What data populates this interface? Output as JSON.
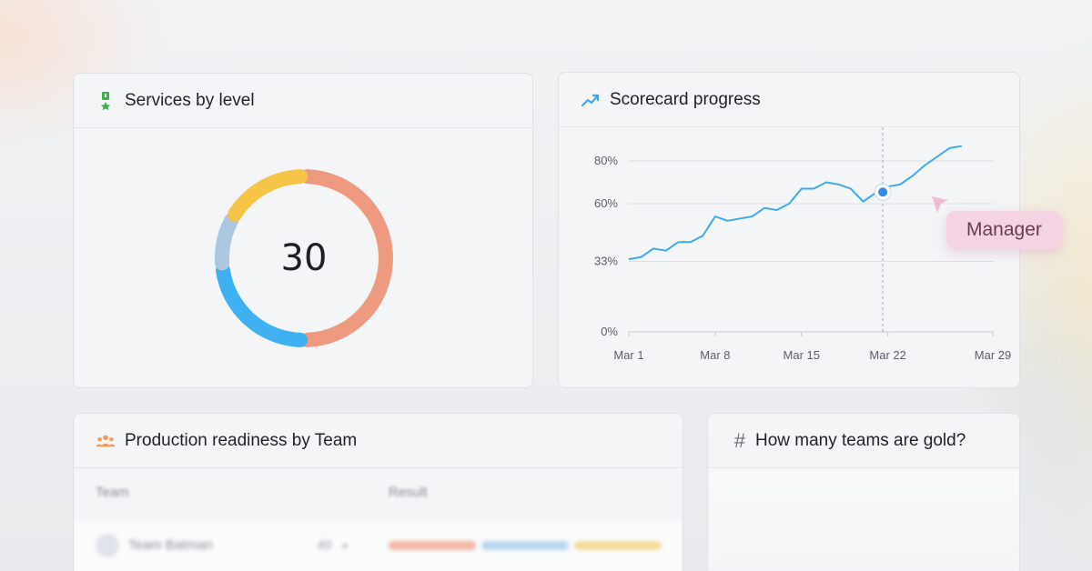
{
  "services_card": {
    "title": "Services by level",
    "icon": "medal-icon",
    "total": "30",
    "chart_data": {
      "type": "pie",
      "values": [
        15,
        7,
        3,
        5
      ],
      "colors": [
        "#ee9a80",
        "#3fb1f2",
        "#acc7df",
        "#f6c547"
      ],
      "hole": true
    }
  },
  "scorecard_card": {
    "title": "Scorecard progress",
    "icon": "trend-line-icon",
    "tooltip_label": "Manager",
    "chart_data": {
      "type": "line",
      "x": [
        "Mar 1",
        "Mar 2",
        "Mar 3",
        "Mar 4",
        "Mar 5",
        "Mar 6",
        "Mar 7",
        "Mar 8",
        "Mar 9",
        "Mar 10",
        "Mar 11",
        "Mar 12",
        "Mar 13",
        "Mar 14",
        "Mar 15",
        "Mar 16",
        "Mar 17",
        "Mar 18",
        "Mar 19",
        "Mar 20",
        "Mar 21",
        "Mar 22",
        "Mar 23",
        "Mar 24",
        "Mar 25",
        "Mar 26",
        "Mar 27",
        "Mar 28"
      ],
      "series": [
        {
          "values": [
            34,
            35,
            39,
            38,
            42,
            42,
            45,
            54,
            52,
            53,
            54,
            58,
            57,
            60,
            67,
            67,
            70,
            69,
            67,
            61,
            65,
            68,
            69,
            73,
            78,
            82,
            86,
            87
          ],
          "color": "#3fa9ee"
        }
      ],
      "y_ticks": [
        "0%",
        "33%",
        "60%",
        "80%"
      ],
      "x_ticks": [
        "Mar 1",
        "Mar 8",
        "Mar 15",
        "Mar 22",
        "Mar 29"
      ],
      "grid": true,
      "highlight_index": 20
    }
  },
  "readiness_card": {
    "title": "Production readiness by Team",
    "icon": "team-icon",
    "columns": [
      "Team",
      "Result"
    ],
    "rows": [
      {
        "team": "Team Batman",
        "count": "40",
        "segments": [
          "#f3b7a6",
          "#b9d6ef",
          "#f4dc9b"
        ]
      }
    ]
  },
  "gold_card": {
    "title": "How many teams are gold?",
    "icon": "hash-icon"
  }
}
